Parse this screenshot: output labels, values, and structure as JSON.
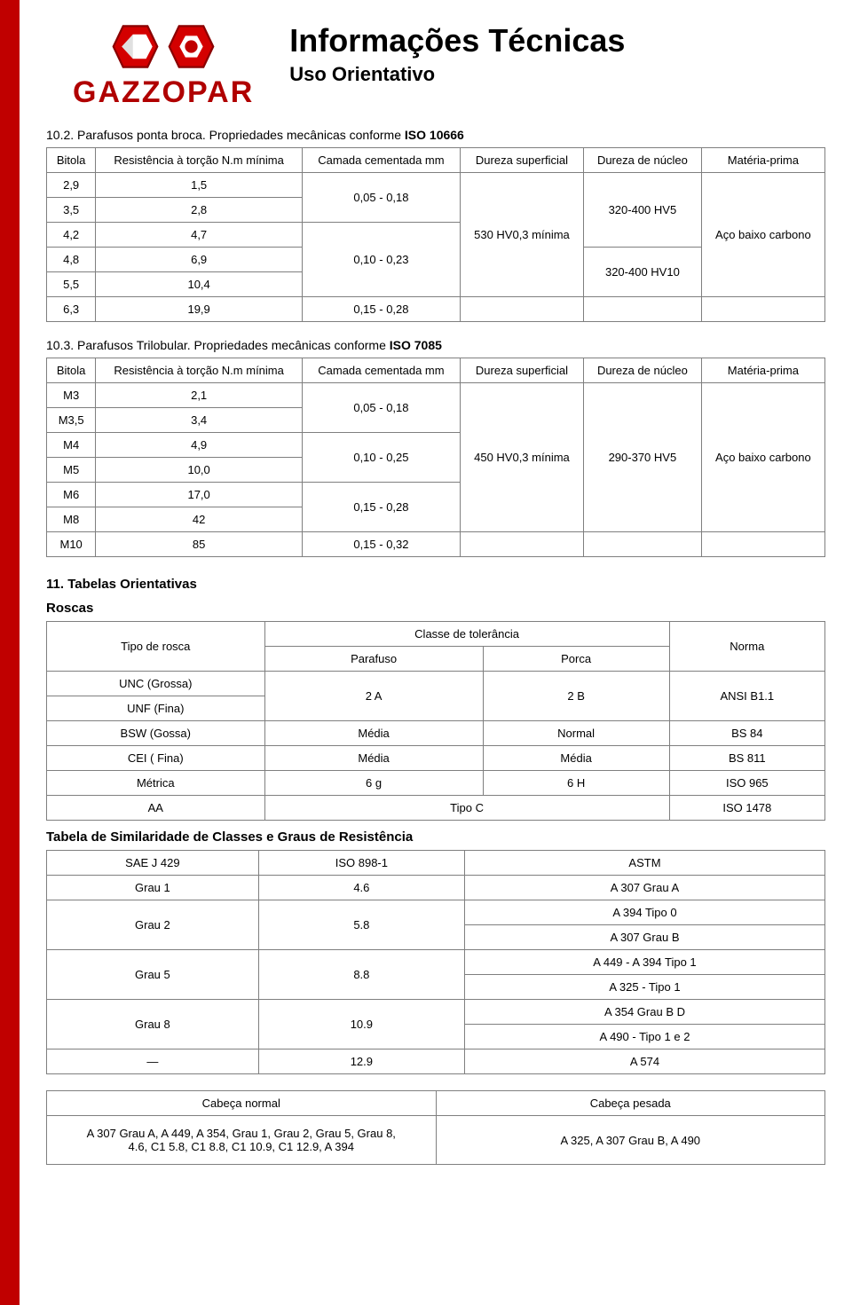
{
  "logo": {
    "text": "GAZZOPAR"
  },
  "title": "Informações Técnicas",
  "subtitle": "Uso Orientativo",
  "section_10_2": {
    "heading_prefix": "10.2. Parafusos ponta broca. Propriedades mecânicas conforme ",
    "heading_bold": "ISO 10666",
    "headers": [
      "Bitola",
      "Resistência à torção N.m mínima",
      "Camada cementada mm",
      "Dureza superficial",
      "Dureza de núcleo",
      "Matéria-prima"
    ],
    "bitola": [
      "2,9",
      "3,5",
      "4,2",
      "4,8",
      "5,5",
      "6,3"
    ],
    "torcao": [
      "1,5",
      "2,8",
      "4,7",
      "6,9",
      "10,4",
      "19,9"
    ],
    "camada_groups": [
      {
        "value": "0,05 - 0,18",
        "span": 2
      },
      {
        "value": "0,10 - 0,23",
        "span": 3
      },
      {
        "value": "0,15 - 0,28",
        "span": 1
      }
    ],
    "dureza_sup": "530 HV0,3 mínima",
    "dureza_nucleo_groups": [
      {
        "value": "320-400 HV5",
        "span": 3
      },
      {
        "value": "320-400 HV10",
        "span": 2
      },
      {
        "value": "",
        "span": 1
      }
    ],
    "materia": "Aço baixo carbono"
  },
  "section_10_3": {
    "heading_prefix": "10.3. Parafusos Trilobular. Propriedades mecânicas conforme ",
    "heading_bold": "ISO 7085",
    "headers": [
      "Bitola",
      "Resistência à torção N.m mínima",
      "Camada cementada mm",
      "Dureza superficial",
      "Dureza de núcleo",
      "Matéria-prima"
    ],
    "bitola": [
      "M3",
      "M3,5",
      "M4",
      "M5",
      "M6",
      "M8",
      "M10"
    ],
    "torcao": [
      "2,1",
      "3,4",
      "4,9",
      "10,0",
      "17,0",
      "42",
      "85"
    ],
    "camada_groups": [
      {
        "value": "0,05 - 0,18",
        "span": 2
      },
      {
        "value": "0,10 - 0,25",
        "span": 2
      },
      {
        "value": "0,15 - 0,28",
        "span": 2
      },
      {
        "value": "0,15 - 0,32",
        "span": 1
      }
    ],
    "dureza_sup": "450 HV0,3 mínima",
    "dureza_nucleo": "290-370 HV5",
    "materia": "Aço baixo carbono"
  },
  "section_11": {
    "title": "11. Tabelas Orientativas",
    "roscas_title": "Roscas",
    "roscas_headers": {
      "tipo": "Tipo de rosca",
      "classe": "Classe de tolerância",
      "parafuso": "Parafuso",
      "porca": "Porca",
      "norma": "Norma"
    },
    "roscas_r1a": "UNC (Grossa)",
    "roscas_r1b": "UNF (Fina)",
    "roscas_r1_par": "2 A",
    "roscas_r1_por": "2 B",
    "roscas_r1_nor": "ANSI B1.1",
    "roscas_rows": [
      {
        "tipo": "BSW (Gossa)",
        "par": "Média",
        "por": "Normal",
        "nor": "BS 84"
      },
      {
        "tipo": "CEI ( Fina)",
        "par": "Média",
        "por": "Média",
        "nor": "BS 811"
      },
      {
        "tipo": "Métrica",
        "par": "6 g",
        "por": "6 H",
        "nor": "ISO 965"
      }
    ],
    "roscas_last": {
      "tipo": "AA",
      "merged": "Tipo C",
      "nor": "ISO 1478"
    },
    "similar_title": "Tabela de Similaridade de Classes e Graus de Resistência",
    "similar_headers": [
      "SAE J 429",
      "ISO 898-1",
      "ASTM"
    ],
    "similar_rows": [
      {
        "sae": "Grau 1",
        "iso": "4.6",
        "astm": [
          "A 307 Grau A"
        ]
      },
      {
        "sae": "Grau 2",
        "iso": "5.8",
        "astm": [
          "A 394 Tipo 0",
          "A 307 Grau B"
        ]
      },
      {
        "sae": "Grau 5",
        "iso": "8.8",
        "astm": [
          "A 449 - A 394 Tipo 1",
          "A 325 - Tipo 1"
        ]
      },
      {
        "sae": "Grau 8",
        "iso": "10.9",
        "astm": [
          "A 354 Grau B D",
          "A 490 - Tipo 1 e 2"
        ]
      },
      {
        "sae": "—",
        "iso": "12.9",
        "astm": [
          "A 574"
        ]
      }
    ],
    "head_types_headers": [
      "Cabeça normal",
      "Cabeça pesada"
    ],
    "head_normal": "A 307 Grau A, A 449, A 354, Grau 1, Grau 2, Grau 5, Grau 8, 4.6, C1 5.8, C1 8.8, C1 10.9, C1 12.9, A 394",
    "head_pesada": "A 325, A 307 Grau B, A 490"
  }
}
